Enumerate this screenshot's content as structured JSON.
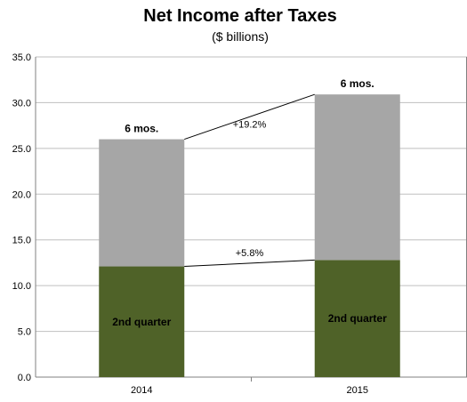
{
  "chart_data": {
    "type": "bar",
    "stacked": true,
    "title": "Net Income after Taxes",
    "subtitle": "($ billions)",
    "categories": [
      "2014",
      "2015"
    ],
    "series": [
      {
        "name": "2nd quarter",
        "values": [
          12.1,
          12.8
        ],
        "color": "#4f6228"
      },
      {
        "name": "6 mos.",
        "values": [
          13.9,
          18.1
        ],
        "color": "#a6a6a6"
      }
    ],
    "totals": [
      26.0,
      30.9
    ],
    "ylim": [
      0,
      35
    ],
    "yticks": [
      "0.0",
      "5.0",
      "10.0",
      "15.0",
      "20.0",
      "25.0",
      "30.0",
      "35.0"
    ],
    "grid": true,
    "segment_labels": [
      "2nd quarter",
      "2nd quarter"
    ],
    "top_labels": [
      "6 mos.",
      "6 mos."
    ],
    "annotations": [
      {
        "text": "+19.2%",
        "between": "totals"
      },
      {
        "text": "+5.8%",
        "between": "2nd quarter"
      }
    ],
    "frame_color": "#808080",
    "grid_color": "#bfbfbf"
  }
}
